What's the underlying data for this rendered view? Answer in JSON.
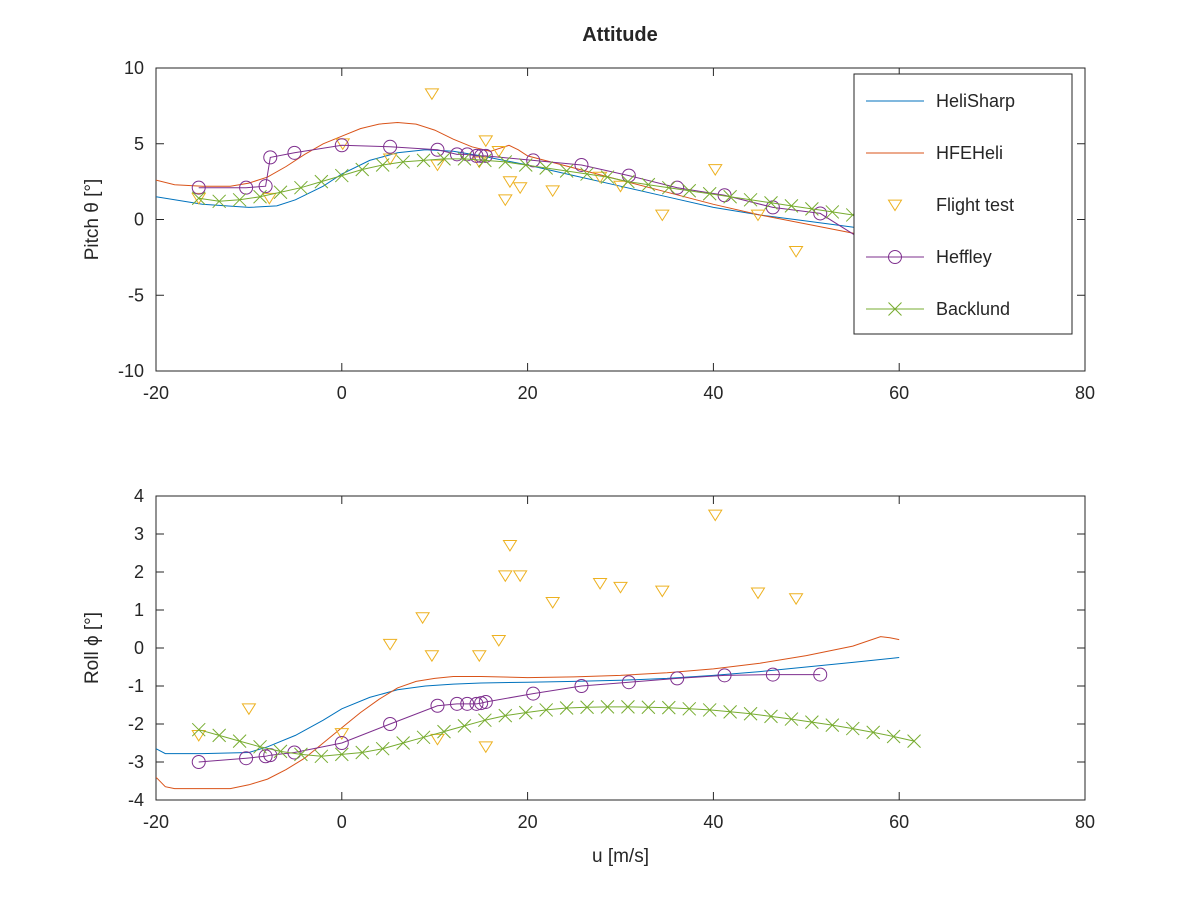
{
  "figure": {
    "title": "Attitude"
  },
  "colors": {
    "HeliSharp": "#0072bd",
    "HFEHeli": "#d95319",
    "Flight test": "#edb120",
    "Heffley": "#7e2f8e",
    "Backlund": "#77ac30"
  },
  "legend": {
    "placement": "top-right of upper panel",
    "entries": [
      {
        "name": "HeliSharp",
        "marker": "none"
      },
      {
        "name": "HFEHeli",
        "marker": "none"
      },
      {
        "name": "Flight test",
        "marker": "triangle-down"
      },
      {
        "name": "Heffley",
        "marker": "circle"
      },
      {
        "name": "Backlund",
        "marker": "x"
      }
    ]
  },
  "chart_data": [
    {
      "type": "line",
      "title": "Attitude",
      "xlabel": "",
      "ylabel": "Pitch θ [°]",
      "xlim": [
        -20,
        80
      ],
      "ylim": [
        -10,
        10
      ],
      "xticks": [
        "-20",
        "0",
        "20",
        "40",
        "60",
        "80"
      ],
      "yticks": [
        "-10",
        "-5",
        "0",
        "5",
        "10"
      ],
      "grid": false,
      "series": [
        {
          "name": "HeliSharp",
          "marker": "none",
          "x": [
            -20,
            -15,
            -10,
            -7,
            -5,
            -2,
            0,
            3,
            6,
            9,
            12,
            15,
            20,
            25,
            30,
            35,
            40,
            45,
            50,
            55,
            60
          ],
          "y": [
            1.5,
            1.0,
            0.8,
            0.9,
            1.3,
            2.2,
            3.0,
            3.9,
            4.4,
            4.6,
            4.5,
            4.2,
            3.6,
            2.9,
            2.2,
            1.5,
            0.8,
            0.3,
            -0.1,
            -0.5,
            -0.8
          ]
        },
        {
          "name": "HFEHeli",
          "marker": "none",
          "x": [
            -20,
            -18,
            -15,
            -12,
            -10,
            -8,
            -6,
            -4,
            -2,
            0,
            2,
            4,
            6,
            8,
            10,
            12,
            14,
            16,
            17,
            18,
            19,
            20,
            25,
            30,
            35,
            40,
            45,
            50,
            55,
            57,
            58,
            59,
            60
          ],
          "y": [
            2.6,
            2.3,
            2.2,
            2.2,
            2.4,
            2.8,
            3.5,
            4.3,
            5.0,
            5.5,
            6.0,
            6.3,
            6.4,
            6.3,
            5.9,
            5.3,
            4.8,
            4.5,
            4.7,
            4.9,
            4.6,
            4.2,
            3.4,
            2.6,
            1.8,
            1.0,
            0.3,
            -0.3,
            -0.9,
            -1.2,
            -1.9,
            0.4,
            -4.5
          ]
        },
        {
          "name": "Flight test",
          "marker": "triangle-down",
          "x": [
            -15.4,
            -7.8,
            0.1,
            5.2,
            9.7,
            10.3,
            14.8,
            15.5,
            16.9,
            17.6,
            18.1,
            19.2,
            22.7,
            27.8,
            30.0,
            34.5,
            40.2,
            44.8,
            48.9,
            59.6
          ],
          "y": [
            1.4,
            1.4,
            5.0,
            4.0,
            8.3,
            3.6,
            3.8,
            5.2,
            4.5,
            1.3,
            2.5,
            2.1,
            1.9,
            2.8,
            2.2,
            0.3,
            3.3,
            0.3,
            -2.1,
            0.9
          ]
        },
        {
          "name": "Heffley",
          "marker": "circle",
          "x": [
            -15.4,
            -10.3,
            -8.2,
            -7.7,
            -5.1,
            0.0,
            5.2,
            10.3,
            12.4,
            13.5,
            14.5,
            15.0,
            15.5,
            20.6,
            25.8,
            30.9,
            36.1,
            41.2,
            46.4,
            51.5,
            56.7,
            59.6
          ],
          "y": [
            2.1,
            2.1,
            2.2,
            4.1,
            4.4,
            4.9,
            4.8,
            4.6,
            4.3,
            4.3,
            4.2,
            4.2,
            4.2,
            3.9,
            3.6,
            2.9,
            2.1,
            1.6,
            0.8,
            0.4,
            -1.6,
            -2.4
          ]
        },
        {
          "name": "Backlund",
          "marker": "x",
          "x": [
            -15.4,
            -13.2,
            -11.0,
            -8.8,
            -6.6,
            -4.4,
            -2.2,
            0.0,
            2.2,
            4.4,
            6.6,
            8.8,
            11.0,
            13.2,
            15.4,
            17.6,
            19.8,
            22.0,
            24.2,
            26.4,
            28.6,
            30.8,
            33.0,
            35.2,
            37.4,
            39.6,
            41.8,
            44.0,
            46.2,
            48.4,
            50.6,
            52.8,
            55.0,
            57.2,
            59.4,
            61.6
          ],
          "y": [
            1.4,
            1.2,
            1.3,
            1.5,
            1.8,
            2.1,
            2.5,
            2.9,
            3.3,
            3.6,
            3.8,
            3.9,
            4.0,
            4.0,
            3.9,
            3.8,
            3.6,
            3.4,
            3.2,
            3.0,
            2.8,
            2.5,
            2.3,
            2.1,
            1.9,
            1.7,
            1.5,
            1.3,
            1.1,
            0.9,
            0.7,
            0.5,
            0.3,
            0.1,
            -0.1,
            -0.3
          ]
        }
      ]
    },
    {
      "type": "line",
      "title": "",
      "xlabel": "u [m/s]",
      "ylabel": "Roll ϕ [°]",
      "xlim": [
        -20,
        80
      ],
      "ylim": [
        -4,
        4
      ],
      "xticks": [
        "-20",
        "0",
        "20",
        "40",
        "60",
        "80"
      ],
      "yticks": [
        "-4",
        "-3",
        "-2",
        "-1",
        "0",
        "1",
        "2",
        "3",
        "4"
      ],
      "grid": false,
      "series": [
        {
          "name": "HeliSharp",
          "marker": "none",
          "x": [
            -20,
            -19,
            -15,
            -10,
            -8,
            -5,
            -2,
            0,
            3,
            6,
            9,
            12,
            15,
            20,
            25,
            30,
            35,
            40,
            45,
            50,
            55,
            60
          ],
          "y": [
            -2.65,
            -2.78,
            -2.78,
            -2.75,
            -2.6,
            -2.3,
            -1.9,
            -1.6,
            -1.3,
            -1.1,
            -1.0,
            -0.95,
            -0.92,
            -0.9,
            -0.88,
            -0.85,
            -0.8,
            -0.72,
            -0.62,
            -0.5,
            -0.38,
            -0.25
          ]
        },
        {
          "name": "HFEHeli",
          "marker": "none",
          "x": [
            -20,
            -19,
            -18,
            -15,
            -12,
            -10,
            -8,
            -6,
            -4,
            -2,
            0,
            2,
            4,
            6,
            8,
            10,
            12,
            15,
            20,
            25,
            30,
            35,
            40,
            45,
            50,
            55,
            58,
            59,
            60
          ],
          "y": [
            -3.4,
            -3.65,
            -3.7,
            -3.7,
            -3.7,
            -3.6,
            -3.45,
            -3.2,
            -2.9,
            -2.5,
            -2.1,
            -1.7,
            -1.35,
            -1.05,
            -0.88,
            -0.8,
            -0.75,
            -0.75,
            -0.78,
            -0.76,
            -0.72,
            -0.65,
            -0.55,
            -0.4,
            -0.2,
            0.05,
            0.3,
            0.27,
            0.22
          ]
        },
        {
          "name": "Flight test",
          "marker": "triangle-down",
          "x": [
            -15.4,
            -10.0,
            0.0,
            5.2,
            8.7,
            9.7,
            10.3,
            14.8,
            15.5,
            16.9,
            17.6,
            18.1,
            19.2,
            22.7,
            27.8,
            30.0,
            34.5,
            40.2,
            44.8,
            48.9
          ],
          "y": [
            -2.3,
            -1.6,
            -2.25,
            0.1,
            0.8,
            -0.2,
            -2.4,
            -0.2,
            -2.6,
            0.2,
            1.9,
            2.7,
            1.9,
            1.2,
            1.7,
            1.6,
            1.5,
            3.5,
            1.45,
            1.3
          ]
        },
        {
          "name": "Heffley",
          "marker": "circle",
          "x": [
            -15.4,
            -10.3,
            -8.2,
            -7.7,
            -5.1,
            0.0,
            5.2,
            10.3,
            12.4,
            13.5,
            14.5,
            15.0,
            15.5,
            20.6,
            25.8,
            30.9,
            36.1,
            41.2,
            46.4,
            51.5
          ],
          "y": [
            -3.0,
            -2.9,
            -2.85,
            -2.82,
            -2.75,
            -2.5,
            -2.0,
            -1.52,
            -1.47,
            -1.47,
            -1.47,
            -1.45,
            -1.42,
            -1.2,
            -1.0,
            -0.9,
            -0.8,
            -0.72,
            -0.7,
            -0.7
          ]
        },
        {
          "name": "Backlund",
          "marker": "x",
          "x": [
            -15.4,
            -13.2,
            -11.0,
            -8.8,
            -6.6,
            -4.4,
            -2.2,
            0.0,
            2.2,
            4.4,
            6.6,
            8.8,
            11.0,
            13.2,
            15.4,
            17.6,
            19.8,
            22.0,
            24.2,
            26.4,
            28.6,
            30.8,
            33.0,
            35.2,
            37.4,
            39.6,
            41.8,
            44.0,
            46.2,
            48.4,
            50.6,
            52.8,
            55.0,
            57.2,
            59.4,
            61.6
          ],
          "y": [
            -2.15,
            -2.3,
            -2.45,
            -2.6,
            -2.72,
            -2.8,
            -2.85,
            -2.8,
            -2.75,
            -2.65,
            -2.5,
            -2.35,
            -2.2,
            -2.05,
            -1.9,
            -1.78,
            -1.7,
            -1.63,
            -1.58,
            -1.56,
            -1.55,
            -1.55,
            -1.56,
            -1.57,
            -1.6,
            -1.63,
            -1.68,
            -1.73,
            -1.8,
            -1.87,
            -1.95,
            -2.03,
            -2.12,
            -2.22,
            -2.33,
            -2.45
          ]
        }
      ]
    }
  ]
}
